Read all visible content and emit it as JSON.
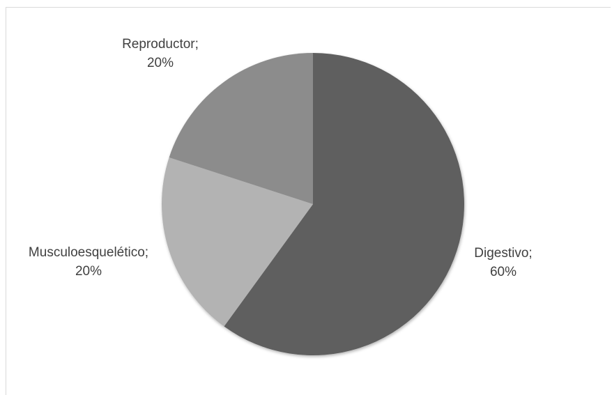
{
  "chart_data": {
    "type": "pie",
    "title": "",
    "categories": [
      "Digestivo",
      "Musculoesquelético",
      "Reproductor"
    ],
    "values": [
      60,
      20,
      20
    ],
    "labels": [
      {
        "name": "Digestivo;",
        "value": "60%"
      },
      {
        "name": "Musculoesquelético;",
        "value": "20%"
      },
      {
        "name": "Reproductor;",
        "value": "20%"
      }
    ],
    "colors": [
      "#5e5e5e",
      "#b3b3b3",
      "#8c8c8c"
    ],
    "start_angle_deg": 0,
    "direction": "clockwise",
    "legend": "none"
  }
}
